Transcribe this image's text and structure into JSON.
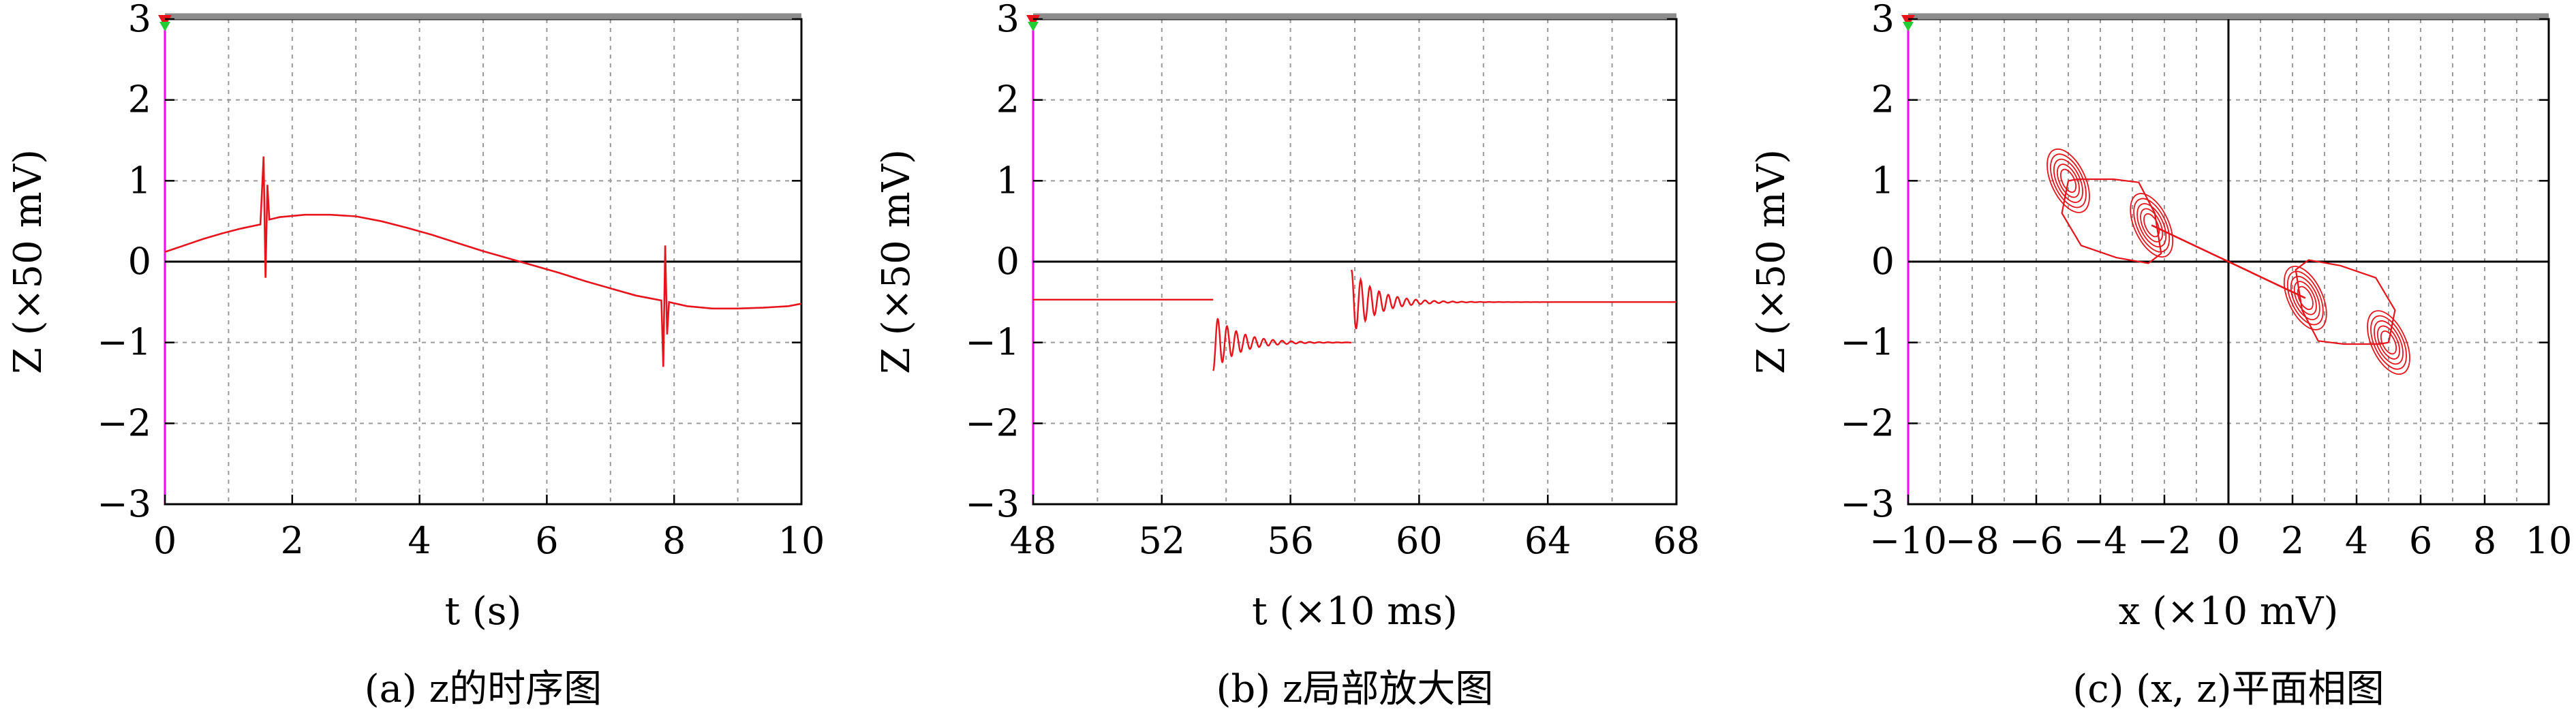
{
  "chart_data": [
    {
      "type": "line",
      "panel": "a",
      "caption": "(a) z的时序图",
      "xlabel": "t (s)",
      "ylabel": "Z (×50 mV)",
      "xlim": [
        0,
        10
      ],
      "ylim": [
        -3,
        3
      ],
      "xticks": [
        "0",
        "2",
        "4",
        "6",
        "8",
        "10"
      ],
      "yticks": [
        "−3",
        "−2",
        "−1",
        "0",
        "1",
        "2",
        "3"
      ],
      "grid": true,
      "series_color": "#e8141c",
      "series": [
        {
          "x": [
            0,
            0.3,
            0.6,
            0.9,
            1.2,
            1.5,
            1.55,
            1.58,
            1.61,
            1.64,
            1.8,
            2.2,
            2.6,
            3.0,
            3.4,
            3.8,
            4.2,
            4.6,
            5.0,
            5.4,
            5.8,
            6.2,
            6.6,
            7.0,
            7.4,
            7.8,
            7.83,
            7.86,
            7.89,
            7.92,
            8.2,
            8.6,
            9.0,
            9.4,
            9.8,
            10.0
          ],
          "y": [
            0.12,
            0.2,
            0.28,
            0.35,
            0.41,
            0.46,
            1.3,
            -0.2,
            0.95,
            0.52,
            0.55,
            0.58,
            0.58,
            0.56,
            0.5,
            0.42,
            0.33,
            0.23,
            0.13,
            0.04,
            -0.05,
            -0.14,
            -0.24,
            -0.33,
            -0.42,
            -0.48,
            -1.3,
            0.2,
            -0.9,
            -0.5,
            -0.55,
            -0.58,
            -0.58,
            -0.57,
            -0.55,
            -0.52
          ]
        }
      ]
    },
    {
      "type": "line",
      "panel": "b",
      "caption": "(b) z局部放大图",
      "xlabel": "t (×10 ms)",
      "ylabel": "Z (×50 mV)",
      "xlim": [
        48,
        68
      ],
      "ylim": [
        -3,
        3
      ],
      "xticks": [
        "48",
        "52",
        "56",
        "60",
        "64",
        "68"
      ],
      "yticks": [
        "−3",
        "−2",
        "−1",
        "0",
        "1",
        "2",
        "3"
      ],
      "grid": true,
      "series_color": "#e8141c",
      "segments": [
        {
          "x0": 48,
          "x1": 53.6,
          "y": -0.47
        },
        {
          "x0": 53.6,
          "x1": 57.9,
          "y": -1.0,
          "ring_start": -1.35,
          "ring_cycles": 14,
          "decay": 0.78
        },
        {
          "x0": 57.9,
          "x1": 68,
          "y": -0.5,
          "ring_start": -0.1,
          "ring_cycles": 14,
          "decay": 0.78
        }
      ]
    },
    {
      "type": "line",
      "panel": "c",
      "caption": "(c) (x, z)平面相图",
      "xlabel": "x (×10 mV)",
      "ylabel": "Z (×50 mV)",
      "xlim": [
        -10,
        10
      ],
      "ylim": [
        -3,
        3
      ],
      "xticks": [
        "−10",
        "−8",
        "−6",
        "−4",
        "−2",
        "0",
        "2",
        "4",
        "6",
        "8",
        "10"
      ],
      "yticks": [
        "−3",
        "−2",
        "−1",
        "0",
        "1",
        "2",
        "3"
      ],
      "grid": true,
      "series_color": "#e8141c",
      "equilibria": [
        {
          "x": -5.0,
          "y": 1.0
        },
        {
          "x": -2.4,
          "y": 0.45
        },
        {
          "x": 2.4,
          "y": -0.45
        },
        {
          "x": 5.0,
          "y": -1.0
        }
      ],
      "diagonal": {
        "x": [
          -2.4,
          2.4
        ],
        "y": [
          0.45,
          -0.45
        ]
      },
      "loops": [
        {
          "x": [
            -5.0,
            -4.7,
            -3.6,
            -2.8,
            -2.3,
            -2.1,
            -2.5,
            -3.5,
            -4.6,
            -5.2,
            -5.0
          ],
          "y": [
            1.0,
            1.02,
            1.02,
            0.98,
            0.6,
            0.1,
            -0.02,
            0.05,
            0.2,
            0.6,
            1.0
          ]
        },
        {
          "x": [
            5.0,
            4.7,
            3.6,
            2.8,
            2.3,
            2.1,
            2.5,
            3.5,
            4.6,
            5.2,
            5.0
          ],
          "y": [
            -1.0,
            -1.02,
            -1.02,
            -0.98,
            -0.6,
            -0.1,
            0.02,
            -0.05,
            -0.2,
            -0.6,
            -1.0
          ]
        }
      ]
    }
  ]
}
